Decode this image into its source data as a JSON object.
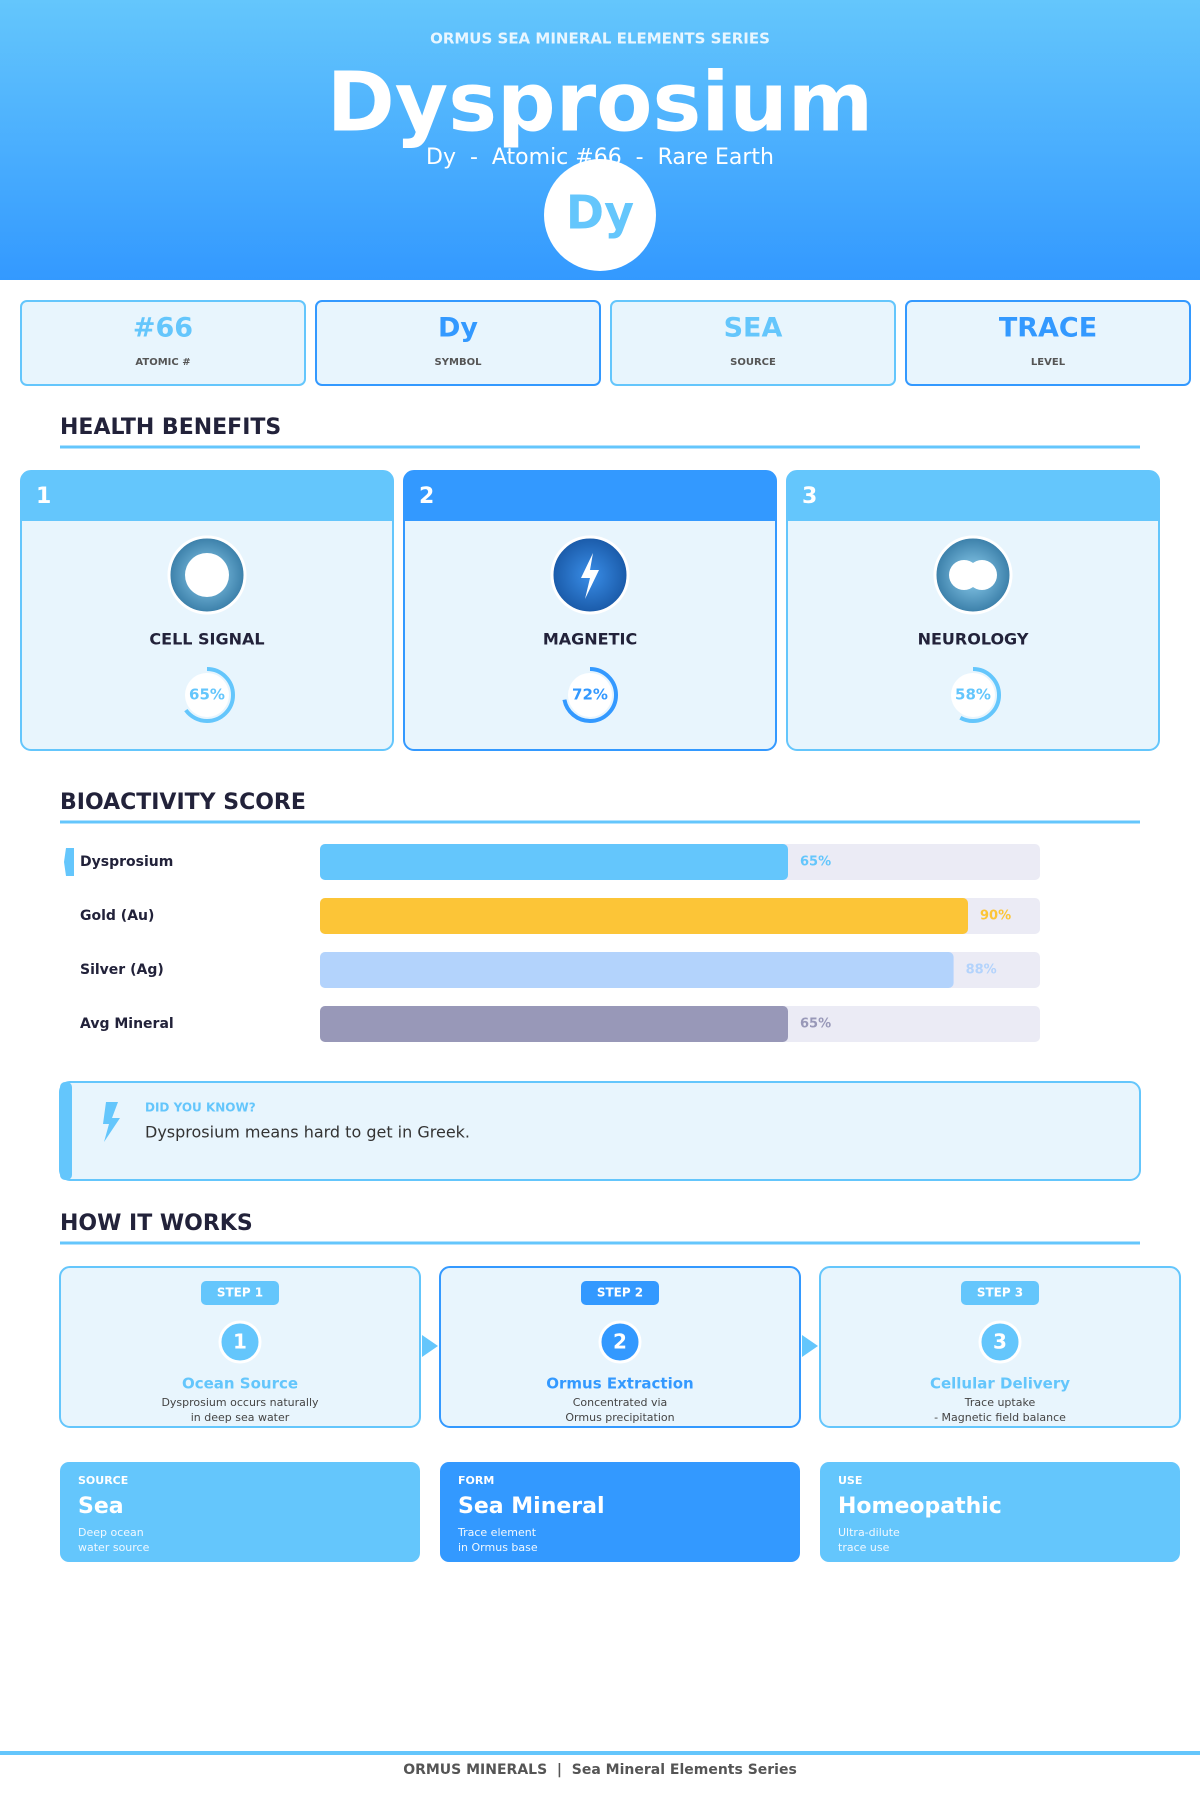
{
  "header": {
    "series": "ORMUS SEA MINERAL ELEMENTS SERIES",
    "title": "Dysprosium",
    "subtitle": "Dy  -  Atomic #66  -  Rare Earth",
    "badge": "Dy"
  },
  "stats": [
    {
      "value": "#66",
      "label": "ATOMIC #"
    },
    {
      "value": "Dy",
      "label": "SYMBOL"
    },
    {
      "value": "SEA",
      "label": "SOURCE"
    },
    {
      "value": "TRACE",
      "label": "LEVEL"
    }
  ],
  "benefits": {
    "title": "HEALTH BENEFITS",
    "range": [
      0,
      100
    ],
    "items": [
      {
        "number": "1",
        "name": "CELL SIGNAL",
        "value": 65,
        "value_label": "65%"
      },
      {
        "number": "2",
        "name": "MAGNETIC",
        "value": 72,
        "value_label": "72%"
      },
      {
        "number": "3",
        "name": "NEUROLOGY",
        "value": 58,
        "value_label": "58%"
      }
    ]
  },
  "bioactivity": {
    "title": "BIOACTIVITY SCORE",
    "xlim": [
      0,
      100
    ],
    "bars": [
      {
        "name": "Dysprosium",
        "value": 65,
        "value_label": "65%",
        "color": "#64c6fc"
      },
      {
        "name": "Gold (Au)",
        "value": 90,
        "value_label": "90%",
        "color": "#fcc537"
      },
      {
        "name": "Silver (Ag)",
        "value": 88,
        "value_label": "88%",
        "color": "#b3d3fc"
      },
      {
        "name": "Avg Mineral",
        "value": 65,
        "value_label": "65%",
        "color": "#9898b8"
      }
    ]
  },
  "fact": {
    "heading": "DID YOU KNOW?",
    "text": "Dysprosium means hard to get in Greek."
  },
  "how_it_works": {
    "title": "HOW IT WORKS",
    "steps": [
      {
        "badge": "STEP 1",
        "number": "1",
        "title": "Ocean Source",
        "lines": [
          "Dysprosium occurs naturally",
          "in deep sea water"
        ]
      },
      {
        "badge": "STEP 2",
        "number": "2",
        "title": "Ormus Extraction",
        "lines": [
          "Concentrated via",
          "Ormus precipitation"
        ]
      },
      {
        "badge": "STEP 3",
        "number": "3",
        "title": "Cellular Delivery",
        "lines": [
          "Trace uptake",
          "- Magnetic field balance"
        ]
      }
    ]
  },
  "cards": [
    {
      "kicker": "SOURCE",
      "title": "Sea",
      "lines": [
        "Deep ocean",
        "water source"
      ]
    },
    {
      "kicker": "FORM",
      "title": "Sea Mineral",
      "lines": [
        "Trace element",
        "in Ormus base"
      ]
    },
    {
      "kicker": "USE",
      "title": "Homeopathic",
      "lines": [
        "Ultra-dilute",
        "trace use"
      ]
    }
  ],
  "footer": "ORMUS MINERALS  |  Sea Mineral Elements Series"
}
